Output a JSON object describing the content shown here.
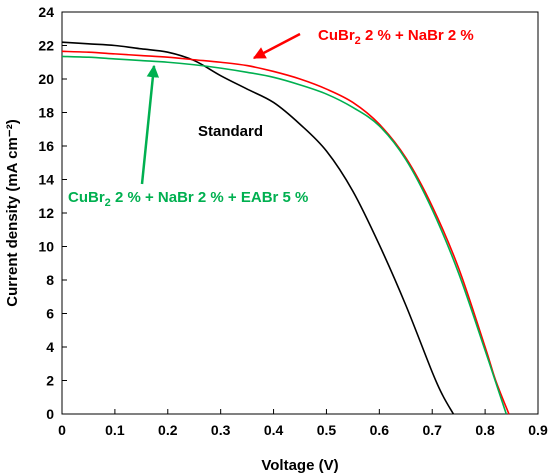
{
  "chart_data": {
    "type": "line",
    "title": "",
    "xlabel": "Voltage (V)",
    "ylabel": "Current density (mA cm⁻²)",
    "xlim": [
      0,
      0.9
    ],
    "ylim": [
      0,
      24
    ],
    "xticks": [
      0,
      0.1,
      0.2,
      0.3,
      0.4,
      0.5,
      0.6,
      0.7,
      0.8,
      0.9
    ],
    "yticks": [
      0,
      2,
      4,
      6,
      8,
      10,
      12,
      14,
      16,
      18,
      20,
      22,
      24
    ],
    "xtick_labels": [
      "0",
      "0.1",
      "0.2",
      "0.3",
      "0.4",
      "0.5",
      "0.6",
      "0.7",
      "0.8",
      "0.9"
    ],
    "ytick_labels": [
      "0",
      "2",
      "4",
      "6",
      "8",
      "10",
      "12",
      "14",
      "16",
      "18",
      "20",
      "22",
      "24"
    ],
    "grid": false,
    "series": [
      {
        "name": "Standard",
        "color": "#000000",
        "x": [
          0,
          0.05,
          0.1,
          0.15,
          0.2,
          0.25,
          0.3,
          0.35,
          0.4,
          0.45,
          0.5,
          0.55,
          0.6,
          0.65,
          0.7,
          0.72,
          0.74
        ],
        "y": [
          22.2,
          22.1,
          22.0,
          21.8,
          21.6,
          21.1,
          20.2,
          19.4,
          18.6,
          17.3,
          15.7,
          13.3,
          10.1,
          6.5,
          2.5,
          1.1,
          0
        ]
      },
      {
        "name": "CuBr₂ 2 % + NaBr 2 %",
        "color": "#ff0000",
        "x": [
          0,
          0.05,
          0.1,
          0.15,
          0.2,
          0.25,
          0.3,
          0.35,
          0.4,
          0.45,
          0.5,
          0.55,
          0.6,
          0.65,
          0.7,
          0.75,
          0.8,
          0.82,
          0.845
        ],
        "y": [
          21.65,
          21.6,
          21.5,
          21.4,
          21.3,
          21.15,
          21.0,
          20.8,
          20.45,
          20.0,
          19.4,
          18.6,
          17.3,
          15.3,
          12.4,
          8.7,
          4.0,
          2.0,
          0
        ]
      },
      {
        "name": "CuBr₂ 2 % + NaBr 2 % + EABr 5 %",
        "color": "#00b050",
        "x": [
          0,
          0.05,
          0.1,
          0.15,
          0.2,
          0.25,
          0.3,
          0.35,
          0.4,
          0.45,
          0.5,
          0.55,
          0.6,
          0.65,
          0.7,
          0.75,
          0.8,
          0.82,
          0.84
        ],
        "y": [
          21.35,
          21.3,
          21.2,
          21.1,
          21.0,
          20.85,
          20.65,
          20.4,
          20.1,
          19.65,
          19.1,
          18.3,
          17.2,
          15.2,
          12.2,
          8.4,
          3.8,
          1.9,
          0
        ]
      }
    ],
    "annotations": {
      "red_prefix": "CuBr",
      "red_sub": "2",
      "red_suffix": " 2 % + NaBr 2 %",
      "green_prefix": "CuBr",
      "green_sub": "2",
      "green_suffix": " 2 % + NaBr 2 % + EABr 5 %",
      "standard_label": "Standard"
    }
  }
}
